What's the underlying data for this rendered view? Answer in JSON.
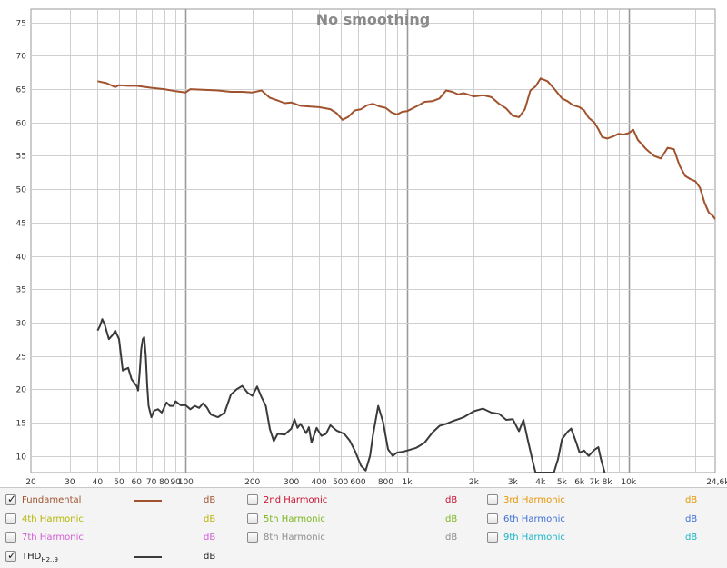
{
  "chart_data": {
    "type": "line",
    "title": "No smoothing",
    "xscale": "log",
    "xlim": [
      20,
      24600
    ],
    "ylim": [
      7.5,
      77
    ],
    "grid": true,
    "x_ticks": [
      {
        "v": 20,
        "label": "20"
      },
      {
        "v": 30,
        "label": "30"
      },
      {
        "v": 40,
        "label": "40"
      },
      {
        "v": 50,
        "label": "50"
      },
      {
        "v": 60,
        "label": "60"
      },
      {
        "v": 70,
        "label": "70"
      },
      {
        "v": 80,
        "label": "80"
      },
      {
        "v": 90,
        "label": "90"
      },
      {
        "v": 100,
        "label": "100"
      },
      {
        "v": 200,
        "label": "200"
      },
      {
        "v": 300,
        "label": "300"
      },
      {
        "v": 400,
        "label": "400"
      },
      {
        "v": 500,
        "label": "500"
      },
      {
        "v": 600,
        "label": "600"
      },
      {
        "v": 800,
        "label": "800"
      },
      {
        "v": 1000,
        "label": "1k"
      },
      {
        "v": 2000,
        "label": "2k"
      },
      {
        "v": 3000,
        "label": "3k"
      },
      {
        "v": 4000,
        "label": "4k"
      },
      {
        "v": 5000,
        "label": "5k"
      },
      {
        "v": 6000,
        "label": "6k"
      },
      {
        "v": 7000,
        "label": "7k"
      },
      {
        "v": 8000,
        "label": "8k"
      },
      {
        "v": 10000,
        "label": "10k"
      },
      {
        "v": 24600,
        "label": "24,6k Hz"
      }
    ],
    "y_ticks": [
      75,
      70,
      65,
      60,
      55,
      50,
      45,
      40,
      35,
      30,
      25,
      20,
      15,
      10
    ],
    "series": [
      {
        "name": "Fundamental",
        "color": "#a0522d",
        "points": [
          [
            40,
            66.2
          ],
          [
            44,
            65.9
          ],
          [
            48,
            65.3
          ],
          [
            50,
            65.6
          ],
          [
            55,
            65.5
          ],
          [
            60,
            65.5
          ],
          [
            70,
            65.2
          ],
          [
            80,
            65.0
          ],
          [
            90,
            64.7
          ],
          [
            100,
            64.5
          ],
          [
            105,
            65.0
          ],
          [
            120,
            64.9
          ],
          [
            140,
            64.8
          ],
          [
            160,
            64.6
          ],
          [
            180,
            64.6
          ],
          [
            200,
            64.5
          ],
          [
            220,
            64.8
          ],
          [
            240,
            63.7
          ],
          [
            260,
            63.3
          ],
          [
            280,
            62.9
          ],
          [
            300,
            63.0
          ],
          [
            330,
            62.5
          ],
          [
            360,
            62.4
          ],
          [
            400,
            62.3
          ],
          [
            450,
            62.0
          ],
          [
            480,
            61.4
          ],
          [
            510,
            60.4
          ],
          [
            540,
            60.8
          ],
          [
            580,
            61.8
          ],
          [
            620,
            62.0
          ],
          [
            660,
            62.6
          ],
          [
            700,
            62.8
          ],
          [
            750,
            62.4
          ],
          [
            800,
            62.2
          ],
          [
            850,
            61.5
          ],
          [
            900,
            61.2
          ],
          [
            950,
            61.6
          ],
          [
            1000,
            61.7
          ],
          [
            1100,
            62.4
          ],
          [
            1200,
            63.1
          ],
          [
            1300,
            63.2
          ],
          [
            1400,
            63.6
          ],
          [
            1500,
            64.8
          ],
          [
            1600,
            64.6
          ],
          [
            1700,
            64.2
          ],
          [
            1800,
            64.4
          ],
          [
            2000,
            63.9
          ],
          [
            2200,
            64.1
          ],
          [
            2400,
            63.8
          ],
          [
            2600,
            62.8
          ],
          [
            2800,
            62.1
          ],
          [
            3000,
            61.0
          ],
          [
            3200,
            60.8
          ],
          [
            3400,
            62.0
          ],
          [
            3600,
            64.8
          ],
          [
            3800,
            65.4
          ],
          [
            4000,
            66.6
          ],
          [
            4300,
            66.2
          ],
          [
            4600,
            65.1
          ],
          [
            5000,
            63.6
          ],
          [
            5300,
            63.2
          ],
          [
            5600,
            62.6
          ],
          [
            6000,
            62.3
          ],
          [
            6300,
            61.8
          ],
          [
            6600,
            60.7
          ],
          [
            7000,
            60.0
          ],
          [
            7300,
            59.0
          ],
          [
            7600,
            57.8
          ],
          [
            8000,
            57.6
          ],
          [
            8500,
            57.9
          ],
          [
            9000,
            58.3
          ],
          [
            9500,
            58.2
          ],
          [
            10000,
            58.4
          ],
          [
            10500,
            58.9
          ],
          [
            11000,
            57.4
          ],
          [
            12000,
            56.0
          ],
          [
            13000,
            55.0
          ],
          [
            14000,
            54.6
          ],
          [
            15000,
            56.2
          ],
          [
            16000,
            56.0
          ],
          [
            17000,
            53.5
          ],
          [
            18000,
            52.0
          ],
          [
            19000,
            51.5
          ],
          [
            20000,
            51.2
          ],
          [
            21000,
            50.2
          ],
          [
            22000,
            48.0
          ],
          [
            23000,
            46.5
          ],
          [
            24000,
            46.0
          ],
          [
            24600,
            45.5
          ]
        ]
      },
      {
        "name": "THD",
        "color": "#3a3a3a",
        "points": [
          [
            40,
            28.8
          ],
          [
            41,
            29.5
          ],
          [
            42,
            30.5
          ],
          [
            43,
            29.8
          ],
          [
            45,
            27.5
          ],
          [
            47,
            28.2
          ],
          [
            48,
            28.8
          ],
          [
            50,
            27.5
          ],
          [
            52,
            22.8
          ],
          [
            55,
            23.2
          ],
          [
            57,
            21.5
          ],
          [
            60,
            20.5
          ],
          [
            61,
            19.8
          ],
          [
            62,
            22.5
          ],
          [
            63,
            26.0
          ],
          [
            64,
            27.5
          ],
          [
            65,
            27.8
          ],
          [
            66,
            25.0
          ],
          [
            67,
            20.5
          ],
          [
            68,
            17.5
          ],
          [
            70,
            15.8
          ],
          [
            72,
            16.8
          ],
          [
            75,
            17.0
          ],
          [
            78,
            16.5
          ],
          [
            82,
            18.0
          ],
          [
            85,
            17.5
          ],
          [
            88,
            17.5
          ],
          [
            90,
            18.2
          ],
          [
            95,
            17.6
          ],
          [
            100,
            17.6
          ],
          [
            105,
            17.0
          ],
          [
            110,
            17.5
          ],
          [
            115,
            17.2
          ],
          [
            120,
            17.9
          ],
          [
            125,
            17.2
          ],
          [
            130,
            16.2
          ],
          [
            140,
            15.8
          ],
          [
            150,
            16.5
          ],
          [
            160,
            19.2
          ],
          [
            170,
            20.0
          ],
          [
            180,
            20.5
          ],
          [
            190,
            19.5
          ],
          [
            200,
            19.0
          ],
          [
            210,
            20.4
          ],
          [
            220,
            18.8
          ],
          [
            230,
            17.5
          ],
          [
            240,
            14.0
          ],
          [
            250,
            12.2
          ],
          [
            260,
            13.3
          ],
          [
            280,
            13.2
          ],
          [
            300,
            14.1
          ],
          [
            310,
            15.5
          ],
          [
            320,
            14.2
          ],
          [
            330,
            14.8
          ],
          [
            350,
            13.4
          ],
          [
            360,
            14.3
          ],
          [
            370,
            12.0
          ],
          [
            390,
            14.2
          ],
          [
            410,
            13.0
          ],
          [
            430,
            13.3
          ],
          [
            450,
            14.6
          ],
          [
            480,
            13.8
          ],
          [
            520,
            13.3
          ],
          [
            550,
            12.3
          ],
          [
            580,
            10.8
          ],
          [
            620,
            8.5
          ],
          [
            650,
            7.8
          ],
          [
            680,
            10.0
          ],
          [
            700,
            13.0
          ],
          [
            740,
            17.5
          ],
          [
            780,
            15.0
          ],
          [
            820,
            11.0
          ],
          [
            860,
            10.0
          ],
          [
            900,
            10.5
          ],
          [
            950,
            10.6
          ],
          [
            1000,
            10.8
          ],
          [
            1100,
            11.2
          ],
          [
            1200,
            12.0
          ],
          [
            1300,
            13.5
          ],
          [
            1400,
            14.5
          ],
          [
            1500,
            14.8
          ],
          [
            1600,
            15.2
          ],
          [
            1700,
            15.5
          ],
          [
            1800,
            15.8
          ],
          [
            2000,
            16.7
          ],
          [
            2200,
            17.1
          ],
          [
            2400,
            16.5
          ],
          [
            2600,
            16.3
          ],
          [
            2800,
            15.4
          ],
          [
            3000,
            15.5
          ],
          [
            3200,
            13.7
          ],
          [
            3350,
            15.4
          ],
          [
            3500,
            12.5
          ],
          [
            3700,
            9.0
          ],
          [
            3800,
            7.5
          ],
          [
            4600,
            7.5
          ],
          [
            4800,
            9.5
          ],
          [
            5000,
            12.5
          ],
          [
            5300,
            13.6
          ],
          [
            5500,
            14.1
          ],
          [
            5800,
            12.0
          ],
          [
            6000,
            10.5
          ],
          [
            6300,
            10.8
          ],
          [
            6600,
            10.0
          ],
          [
            7000,
            10.9
          ],
          [
            7300,
            11.3
          ],
          [
            7500,
            9.5
          ],
          [
            7800,
            7.5
          ]
        ]
      }
    ]
  },
  "legend": {
    "rows": [
      [
        {
          "label": "Fundamental",
          "unit": "dB",
          "checked": true,
          "line": true,
          "color": "#a0522d"
        },
        {
          "label": "2nd Harmonic",
          "unit": "dB",
          "checked": false,
          "line": false,
          "color": "#c8102e"
        },
        {
          "label": "3rd Harmonic",
          "unit": "dB",
          "checked": false,
          "line": false,
          "color": "#e69500"
        }
      ],
      [
        {
          "label": "4th Harmonic",
          "unit": "dB",
          "checked": false,
          "line": false,
          "color": "#b5b500"
        },
        {
          "label": "5th Harmonic",
          "unit": "dB",
          "checked": false,
          "line": false,
          "color": "#7ab51d"
        },
        {
          "label": "6th Harmonic",
          "unit": "dB",
          "checked": false,
          "line": false,
          "color": "#3b6fd6"
        }
      ],
      [
        {
          "label": "7th Harmonic",
          "unit": "dB",
          "checked": false,
          "line": false,
          "color": "#d35bd3"
        },
        {
          "label": "8th Harmonic",
          "unit": "dB",
          "checked": false,
          "line": false,
          "color": "#8c8c8c"
        },
        {
          "label": "9th Harmonic",
          "unit": "dB",
          "checked": false,
          "line": false,
          "color": "#17b5c8"
        }
      ],
      [
        {
          "label": "THD",
          "sub": "H2..9",
          "unit": "dB",
          "checked": true,
          "line": true,
          "color": "#3a3a3a"
        }
      ]
    ]
  }
}
